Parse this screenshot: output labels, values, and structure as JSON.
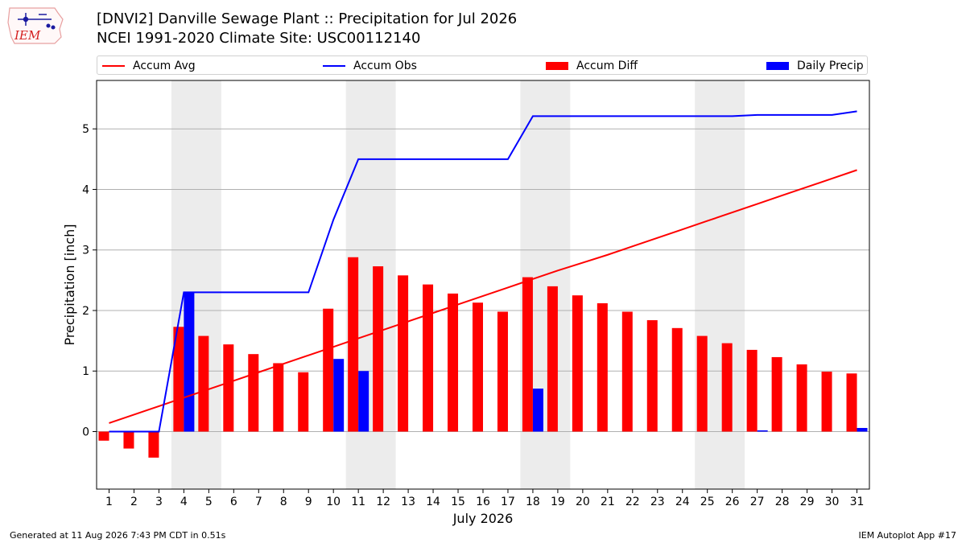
{
  "header": {
    "logo_text": "IEM",
    "title_line1": "[DNVI2] Danville Sewage Plant :: Precipitation for Jul 2026",
    "title_line2": "NCEI 1991-2020 Climate Site: USC00112140"
  },
  "footer": {
    "generated": "Generated at 11 Aug 2026 7:43 PM CDT in 0.51s",
    "app": "IEM Autoplot App #17"
  },
  "chart_data": {
    "type": "bar",
    "title": "[DNVI2] Danville Sewage Plant :: Precipitation for Jul 2026",
    "subtitle": "NCEI 1991-2020 Climate Site: USC00112140",
    "xlabel": "July 2026",
    "ylabel": "Precipitation [inch]",
    "x": [
      1,
      2,
      3,
      4,
      5,
      6,
      7,
      8,
      9,
      10,
      11,
      12,
      13,
      14,
      15,
      16,
      17,
      18,
      19,
      20,
      21,
      22,
      23,
      24,
      25,
      26,
      27,
      28,
      29,
      30,
      31
    ],
    "xlim": [
      0.5,
      31.5
    ],
    "ylim": [
      -0.95,
      5.8
    ],
    "yticks": [
      0,
      1,
      2,
      3,
      4,
      5
    ],
    "grid": "horizontal",
    "legend_position": "top",
    "weekend_shading": [
      [
        4,
        5
      ],
      [
        11,
        12
      ],
      [
        18,
        19
      ],
      [
        25,
        26
      ]
    ],
    "series": [
      {
        "name": "Accum Avg",
        "type": "line",
        "color": "#ff0000",
        "values": [
          0.14,
          0.28,
          0.42,
          0.56,
          0.7,
          0.84,
          0.98,
          1.12,
          1.26,
          1.4,
          1.54,
          1.68,
          1.82,
          1.96,
          2.1,
          2.24,
          2.38,
          2.52,
          2.66,
          2.79,
          2.92,
          3.06,
          3.2,
          3.34,
          3.48,
          3.62,
          3.76,
          3.9,
          4.04,
          4.18,
          4.32
        ]
      },
      {
        "name": "Accum Obs",
        "type": "line",
        "color": "#0000ff",
        "values": [
          0.0,
          0.0,
          0.0,
          2.3,
          2.3,
          2.3,
          2.3,
          2.3,
          2.3,
          3.5,
          4.5,
          4.5,
          4.5,
          4.5,
          4.5,
          4.5,
          4.5,
          5.21,
          5.21,
          5.21,
          5.21,
          5.21,
          5.21,
          5.21,
          5.21,
          5.21,
          5.23,
          5.23,
          5.23,
          5.23,
          5.29
        ]
      },
      {
        "name": "Accum Diff",
        "type": "bar",
        "color": "#ff0000",
        "values": [
          -0.15,
          -0.28,
          -0.43,
          1.73,
          1.58,
          1.44,
          1.28,
          1.13,
          0.98,
          2.03,
          2.88,
          2.73,
          2.58,
          2.43,
          2.28,
          2.13,
          1.98,
          2.55,
          2.4,
          2.25,
          2.12,
          1.98,
          1.84,
          1.71,
          1.58,
          1.46,
          1.35,
          1.23,
          1.11,
          0.99,
          0.96
        ]
      },
      {
        "name": "Daily Precip",
        "type": "bar",
        "color": "#0000ff",
        "values": [
          0,
          0,
          0,
          2.3,
          0,
          0,
          0,
          0,
          0,
          1.2,
          1.0,
          0,
          0,
          0,
          0,
          0,
          0,
          0.71,
          0,
          0,
          0,
          0,
          0,
          0,
          0,
          0,
          0.02,
          0,
          0,
          0,
          0.06
        ]
      }
    ]
  }
}
